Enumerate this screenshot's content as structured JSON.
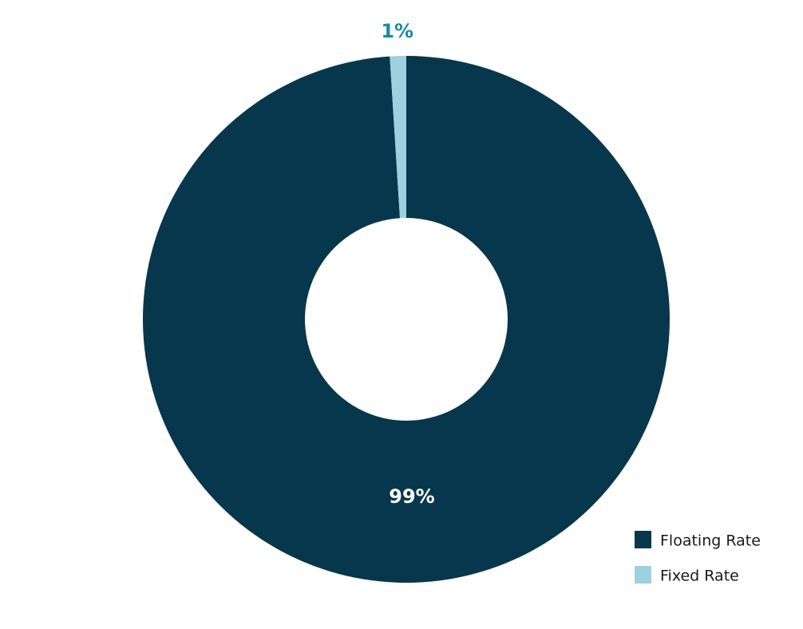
{
  "chart_data": {
    "type": "donut",
    "categories": [
      "Floating Rate",
      "Fixed Rate"
    ],
    "values": [
      99,
      1
    ],
    "value_labels": [
      "99%",
      "1%"
    ],
    "colors": [
      "#06374d",
      "#9dd0e0"
    ],
    "label_colors": [
      "#ffffff",
      "#1a8aa8"
    ],
    "legend": "bottom-right"
  }
}
